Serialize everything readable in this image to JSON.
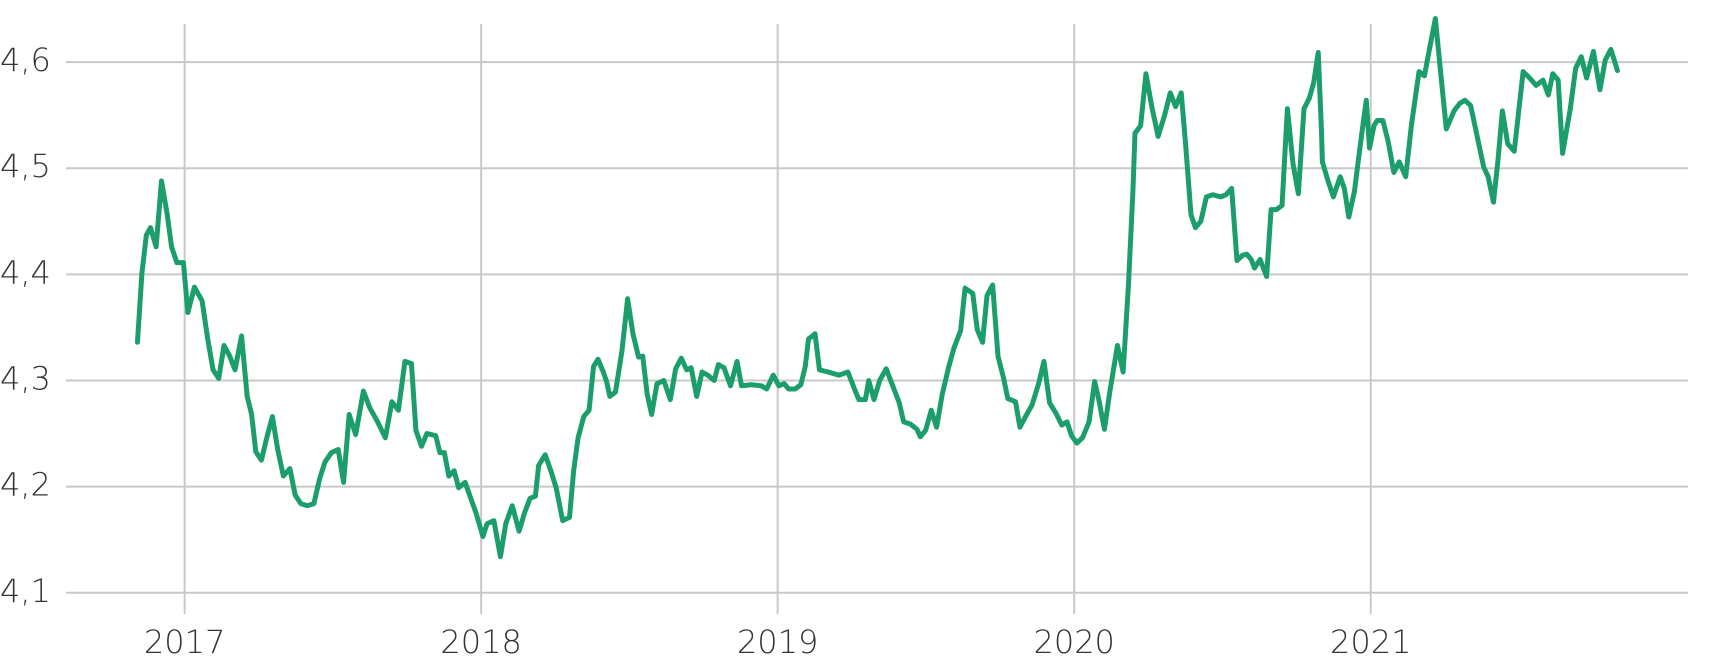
{
  "chart_data": {
    "type": "line",
    "xlim": [
      2016.6,
      2022.07
    ],
    "ylim": [
      4.08,
      4.65
    ],
    "xticks": [
      2017,
      2018,
      2019,
      2020,
      2021
    ],
    "yticks": [
      {
        "value": 4.1,
        "label": "4,1"
      },
      {
        "value": 4.2,
        "label": "4,2"
      },
      {
        "value": 4.3,
        "label": "4,3"
      },
      {
        "value": 4.4,
        "label": "4,4"
      },
      {
        "value": 4.5,
        "label": "4,5"
      },
      {
        "value": 4.6,
        "label": "4,6"
      }
    ],
    "grid": true,
    "series": [
      {
        "color": "#1b9e6b",
        "x": [
          2016.841,
          2016.856,
          2016.871,
          2016.885,
          2016.904,
          2016.922,
          2016.941,
          2016.956,
          2016.974,
          2016.996,
          2017.011,
          2017.033,
          2017.059,
          2017.078,
          2017.096,
          2017.115,
          2017.133,
          2017.152,
          2017.17,
          2017.192,
          2017.211,
          2017.226,
          2017.24,
          2017.259,
          2017.277,
          2017.296,
          2017.314,
          2017.333,
          2017.355,
          2017.373,
          2017.392,
          2017.414,
          2017.436,
          2017.455,
          2017.473,
          2017.495,
          2017.518,
          2017.536,
          2017.555,
          2017.577,
          2017.603,
          2017.625,
          2017.651,
          2017.677,
          2017.699,
          2017.721,
          2017.743,
          2017.765,
          2017.78,
          2017.799,
          2017.817,
          2017.847,
          2017.861,
          2017.876,
          2017.891,
          2017.909,
          2017.924,
          2017.946,
          2017.965,
          2017.983,
          2018.006,
          2018.02,
          2018.043,
          2018.065,
          2018.083,
          2018.105,
          2018.128,
          2018.146,
          2018.165,
          2018.183,
          2018.194,
          2018.216,
          2018.235,
          2018.253,
          2018.275,
          2018.298,
          2018.312,
          2018.327,
          2018.346,
          2018.364,
          2018.379,
          2018.394,
          2018.412,
          2018.423,
          2018.434,
          2018.453,
          2018.475,
          2018.494,
          2018.512,
          2018.531,
          2018.545,
          2018.56,
          2018.575,
          2018.593,
          2018.616,
          2018.638,
          2018.656,
          2018.675,
          2018.693,
          2018.708,
          2018.727,
          2018.745,
          2018.764,
          2018.786,
          2018.8,
          2018.819,
          2018.841,
          2018.863,
          2018.878,
          2018.911,
          2018.945,
          2018.963,
          2018.985,
          2019.004,
          2019.022,
          2019.037,
          2019.059,
          2019.078,
          2019.093,
          2019.104,
          2019.126,
          2019.141,
          2019.17,
          2019.207,
          2019.237,
          2019.259,
          2019.274,
          2019.296,
          2019.307,
          2019.325,
          2019.344,
          2019.366,
          2019.388,
          2019.41,
          2019.425,
          2019.447,
          2019.47,
          2019.481,
          2019.499,
          2019.518,
          2019.536,
          2019.555,
          2019.577,
          2019.595,
          2019.617,
          2019.632,
          2019.658,
          2019.673,
          2019.691,
          2019.706,
          2019.725,
          2019.743,
          2019.762,
          2019.776,
          2019.802,
          2019.817,
          2019.836,
          2019.858,
          2019.88,
          2019.898,
          2019.917,
          2019.939,
          2019.958,
          2019.976,
          2019.991,
          2020.009,
          2020.028,
          2020.05,
          2020.069,
          2020.083,
          2020.102,
          2020.12,
          2020.146,
          2020.165,
          2020.183,
          2020.198,
          2020.205,
          2020.224,
          2020.242,
          2020.261,
          2020.283,
          2020.305,
          2020.324,
          2020.342,
          2020.361,
          2020.375,
          2020.394,
          2020.409,
          2020.427,
          2020.446,
          2020.468,
          2020.494,
          2020.512,
          2020.531,
          2020.549,
          2020.568,
          2020.582,
          2020.597,
          2020.608,
          2020.627,
          2020.649,
          2020.664,
          2020.682,
          2020.701,
          2020.719,
          2020.738,
          2020.756,
          2020.775,
          2020.793,
          2020.808,
          2020.823,
          2020.834,
          2020.837,
          2020.856,
          2020.874,
          2020.897,
          2020.911,
          2020.926,
          2020.945,
          2020.959,
          2020.971,
          2020.985,
          2020.996,
          2021.011,
          2021.022,
          2021.041,
          2021.059,
          2021.078,
          2021.096,
          2021.118,
          2021.137,
          2021.163,
          2021.181,
          2021.2,
          2021.218,
          2021.237,
          2021.255,
          2021.281,
          2021.3,
          2021.318,
          2021.337,
          2021.359,
          2021.381,
          2021.396,
          2021.414,
          2021.429,
          2021.444,
          2021.462,
          2021.484,
          2021.514,
          2021.536,
          2021.558,
          2021.581,
          2021.599,
          2021.614,
          2021.632,
          2021.647,
          2021.673,
          2021.691,
          2021.71,
          2021.728,
          2021.751,
          2021.773,
          2021.791,
          2021.81,
          2021.832
        ],
        "values": [
          4.336,
          4.401,
          4.437,
          4.444,
          4.426,
          4.488,
          4.457,
          4.426,
          4.411,
          4.411,
          4.364,
          4.388,
          4.375,
          4.339,
          4.31,
          4.302,
          4.333,
          4.323,
          4.31,
          4.342,
          4.285,
          4.268,
          4.233,
          4.225,
          4.246,
          4.266,
          4.235,
          4.21,
          4.217,
          4.192,
          4.184,
          4.182,
          4.184,
          4.207,
          4.223,
          4.232,
          4.235,
          4.204,
          4.268,
          4.249,
          4.29,
          4.274,
          4.261,
          4.246,
          4.28,
          4.272,
          4.318,
          4.316,
          4.253,
          4.238,
          4.25,
          4.248,
          4.232,
          4.232,
          4.21,
          4.215,
          4.199,
          4.204,
          4.189,
          4.175,
          4.153,
          4.165,
          4.168,
          4.134,
          4.165,
          4.182,
          4.158,
          4.175,
          4.189,
          4.191,
          4.22,
          4.23,
          4.215,
          4.199,
          4.168,
          4.171,
          4.215,
          4.246,
          4.266,
          4.272,
          4.313,
          4.32,
          4.308,
          4.299,
          4.285,
          4.289,
          4.328,
          4.377,
          4.344,
          4.322,
          4.323,
          4.287,
          4.268,
          4.297,
          4.3,
          4.282,
          4.311,
          4.321,
          4.31,
          4.312,
          4.285,
          4.308,
          4.305,
          4.3,
          4.315,
          4.312,
          4.295,
          4.318,
          4.295,
          4.296,
          4.295,
          4.292,
          4.305,
          4.295,
          4.297,
          4.292,
          4.292,
          4.296,
          4.313,
          4.339,
          4.344,
          4.31,
          4.308,
          4.305,
          4.308,
          4.292,
          4.282,
          4.282,
          4.3,
          4.282,
          4.3,
          4.311,
          4.295,
          4.279,
          4.261,
          4.259,
          4.254,
          4.247,
          4.253,
          4.272,
          4.256,
          4.287,
          4.313,
          4.331,
          4.347,
          4.387,
          4.382,
          4.348,
          4.336,
          4.38,
          4.39,
          4.323,
          4.302,
          4.283,
          4.28,
          4.256,
          4.266,
          4.277,
          4.297,
          4.318,
          4.279,
          4.269,
          4.258,
          4.261,
          4.248,
          4.241,
          4.246,
          4.261,
          4.299,
          4.282,
          4.254,
          4.289,
          4.333,
          4.308,
          4.39,
          4.478,
          4.533,
          4.54,
          4.589,
          4.559,
          4.53,
          4.55,
          4.571,
          4.558,
          4.571,
          4.525,
          4.456,
          4.444,
          4.45,
          4.473,
          4.475,
          4.473,
          4.475,
          4.481,
          4.413,
          4.418,
          4.419,
          4.414,
          4.406,
          4.414,
          4.398,
          4.461,
          4.461,
          4.465,
          4.556,
          4.504,
          4.476,
          4.556,
          4.566,
          4.581,
          4.609,
          4.535,
          4.506,
          4.488,
          4.473,
          4.492,
          4.481,
          4.454,
          4.478,
          4.509,
          4.535,
          4.564,
          4.519,
          4.54,
          4.545,
          4.545,
          4.525,
          4.496,
          4.506,
          4.492,
          4.54,
          4.591,
          4.587,
          4.615,
          4.641,
          4.587,
          4.537,
          4.554,
          4.561,
          4.564,
          4.559,
          4.53,
          4.501,
          4.492,
          4.468,
          4.507,
          4.554,
          4.523,
          4.516,
          4.591,
          4.585,
          4.578,
          4.583,
          4.569,
          4.589,
          4.583,
          4.514,
          4.556,
          4.594,
          4.605,
          4.585,
          4.61,
          4.574,
          4.602,
          4.612,
          4.592
        ]
      }
    ]
  }
}
